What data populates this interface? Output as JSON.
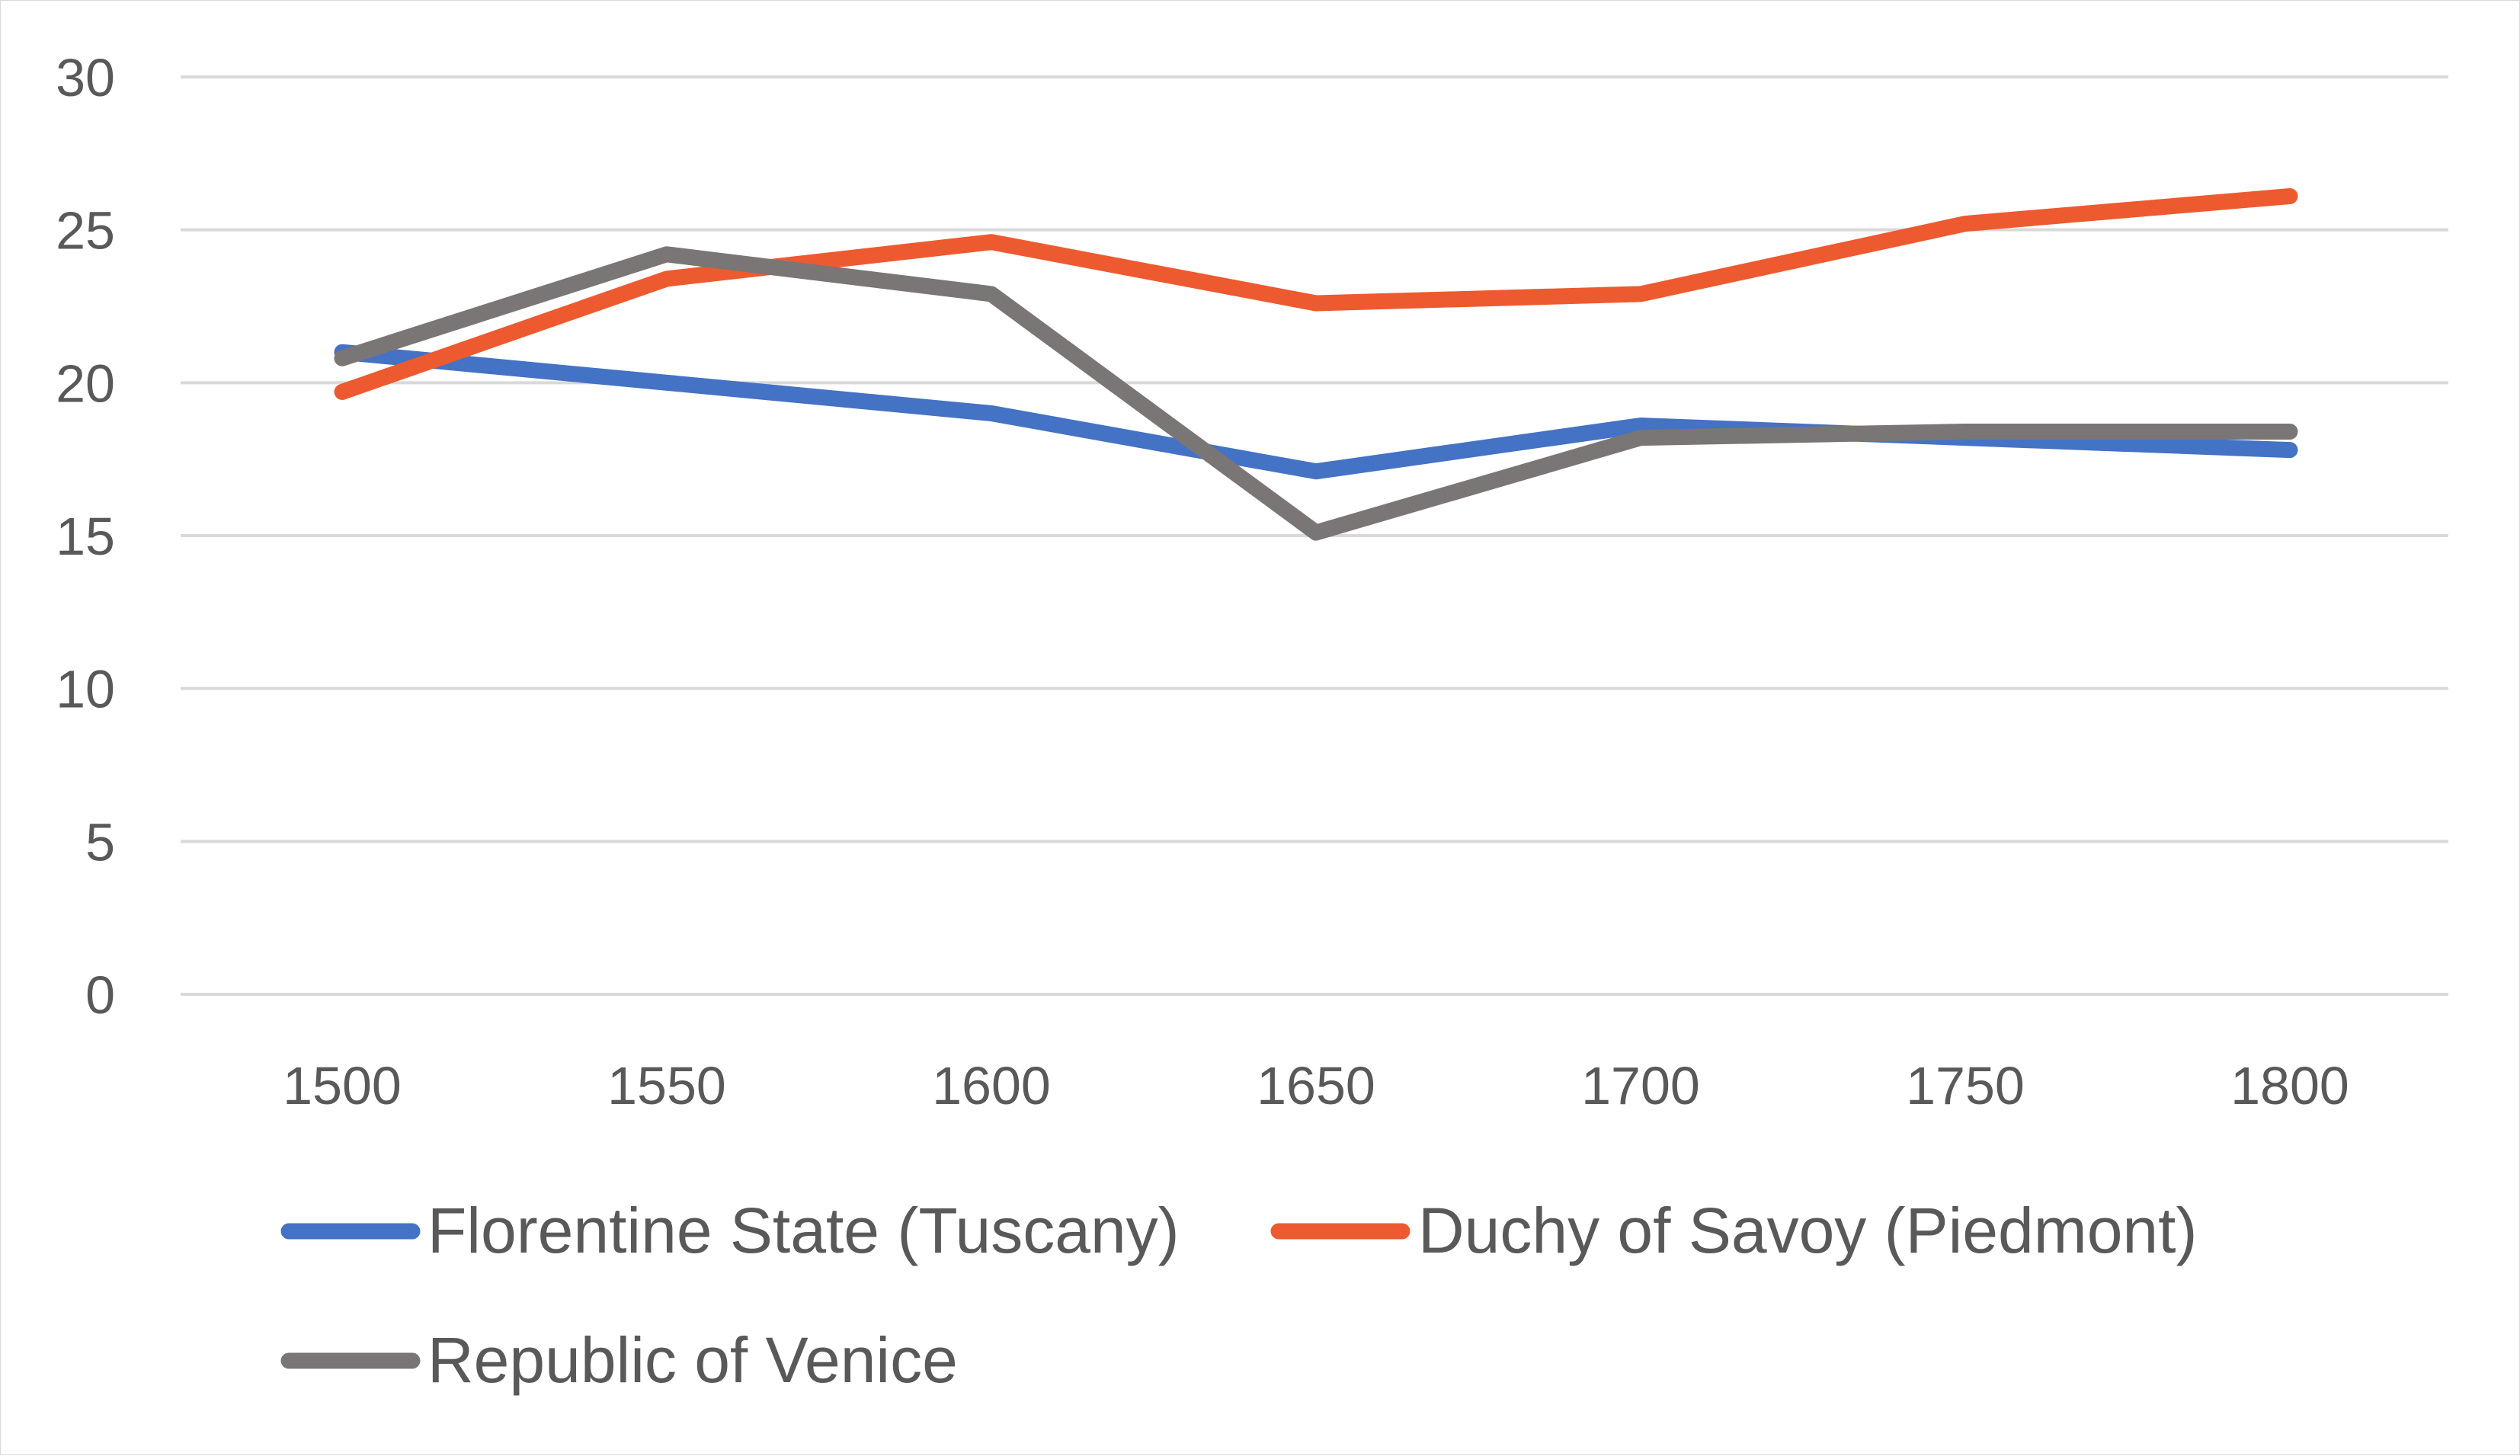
{
  "chart_data": {
    "type": "line",
    "categories": [
      "1500",
      "1550",
      "1600",
      "1650",
      "1700",
      "1750",
      "1800"
    ],
    "x": [
      1500,
      1550,
      1600,
      1650,
      1700,
      1750,
      1800
    ],
    "ylim": [
      0,
      30
    ],
    "yticks": [
      0,
      5,
      10,
      15,
      20,
      25,
      30
    ],
    "grid": true,
    "legend_position": "bottom",
    "title": "",
    "xlabel": "",
    "ylabel": "",
    "series": [
      {
        "name": "Florentine State (Tuscany)",
        "color": "#4472c4",
        "values": [
          21.0,
          20.0,
          19.0,
          17.1,
          18.6,
          18.2,
          17.8
        ]
      },
      {
        "name": "Duchy of Savoy (Piedmont)",
        "color": "#ed5a2f",
        "values": [
          19.7,
          23.4,
          24.6,
          22.6,
          22.9,
          25.2,
          26.1
        ]
      },
      {
        "name": "Republic of Venice",
        "color": "#7a7676",
        "values": [
          20.8,
          24.2,
          22.9,
          15.1,
          18.2,
          18.4,
          18.4
        ]
      }
    ]
  }
}
